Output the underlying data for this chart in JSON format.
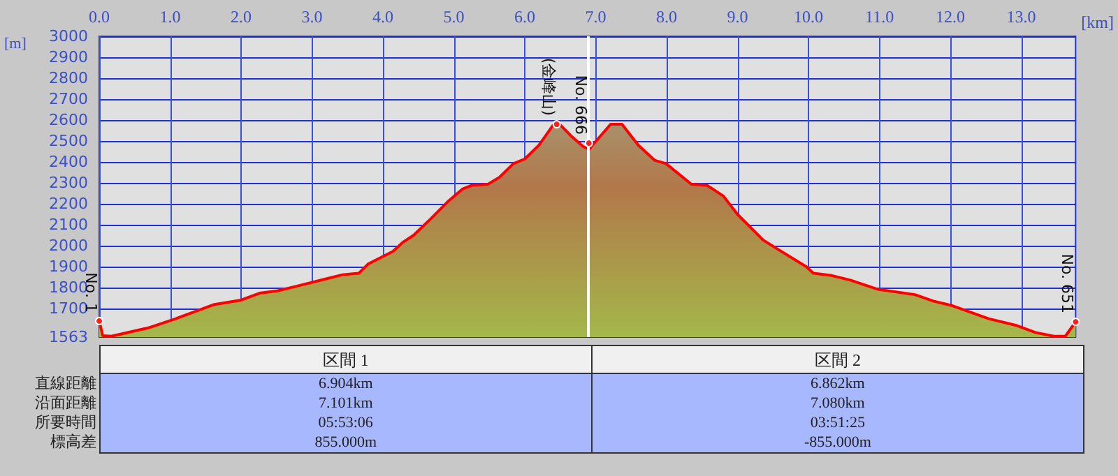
{
  "chart_data": {
    "type": "area",
    "xlabel": "[km]",
    "ylabel": "[m]",
    "x": [
      0,
      0.05,
      0.17,
      0.69,
      1.08,
      1.61,
      2.0,
      2.26,
      2.51,
      2.78,
      3.17,
      3.43,
      3.66,
      3.79,
      4.14,
      4.28,
      4.43,
      4.67,
      4.93,
      5.12,
      5.25,
      5.48,
      5.64,
      5.84,
      6.0,
      6.2,
      6.4,
      6.49,
      6.65,
      6.82,
      6.904,
      7.21,
      7.37,
      7.6,
      7.83,
      7.99,
      8.35,
      8.57,
      8.8,
      9.0,
      9.36,
      9.62,
      9.97,
      10.07,
      10.33,
      10.59,
      10.98,
      11.5,
      11.76,
      12.03,
      12.54,
      12.94,
      13.2,
      13.46,
      13.62,
      13.766
    ],
    "series": [
      {
        "color": "#ff0000",
        "values": [
          1640,
          1570,
          1567,
          1607,
          1651,
          1718,
          1740,
          1773,
          1784,
          1806,
          1839,
          1861,
          1868,
          1912,
          1972,
          2016,
          2049,
          2127,
          2215,
          2270,
          2288,
          2293,
          2326,
          2392,
          2414,
          2480,
          2576,
          2580,
          2525,
          2474,
          2460,
          2580,
          2580,
          2480,
          2408,
          2392,
          2293,
          2288,
          2237,
          2149,
          2027,
          1972,
          1899,
          1868,
          1857,
          1835,
          1791,
          1766,
          1735,
          1713,
          1651,
          1618,
          1585,
          1567,
          1567,
          1636
        ]
      }
    ],
    "xlim": [
      0,
      13.766
    ],
    "xticks": [
      {
        "value": 0,
        "label": "0.0"
      },
      {
        "value": 1,
        "label": "1.0"
      },
      {
        "value": 2,
        "label": "2.0"
      },
      {
        "value": 3,
        "label": "3.0"
      },
      {
        "value": 4,
        "label": "4.0"
      },
      {
        "value": 5,
        "label": "5.0"
      },
      {
        "value": 6,
        "label": "6.0"
      },
      {
        "value": 7,
        "label": "7.0"
      },
      {
        "value": 8,
        "label": "8.0"
      },
      {
        "value": 9,
        "label": "9.0"
      },
      {
        "value": 10,
        "label": "10.0"
      },
      {
        "value": 11,
        "label": "11.0"
      },
      {
        "value": 12,
        "label": "12.0"
      },
      {
        "value": 13,
        "label": "13.0"
      }
    ],
    "ylim": [
      1563,
      3000
    ],
    "yticks": [
      1563,
      1700,
      1800,
      1900,
      2000,
      2100,
      2200,
      2300,
      2400,
      2500,
      2600,
      2700,
      2800,
      2900,
      3000
    ],
    "grid": true,
    "marker": "none",
    "line_style": "solid",
    "ref_lines": [
      {
        "axis": "x",
        "value": 6.904,
        "color": "#ffffff"
      }
    ],
    "annotations": [
      {
        "text": "No. 1",
        "x": 0,
        "y": 1640
      },
      {
        "text": "(金峰山)",
        "x": 6.45,
        "y": 2580
      },
      {
        "text": "No. 666",
        "x": 6.904,
        "y": 2490
      },
      {
        "text": "No. 651",
        "x": 13.766,
        "y": 1636
      },
      "区間 1",
      "区間 2",
      "直線距離",
      "6.904km",
      "6.862km",
      "沿面距離",
      "7.101km",
      "7.080km",
      "所要時間",
      "05:53:06",
      "03:51:25",
      "標高差",
      "855.000m",
      "-855.000m"
    ]
  }
}
